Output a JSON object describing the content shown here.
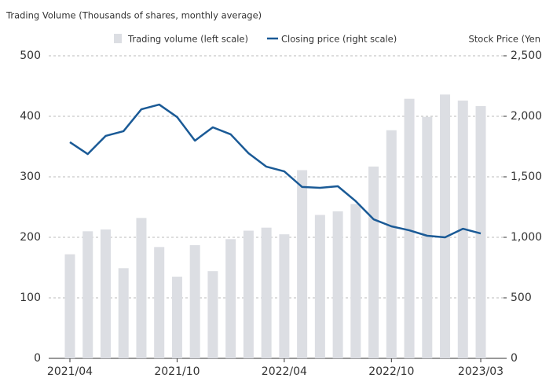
{
  "chart_data": {
    "type": "bar-line",
    "y_axis_title": "Trading Volume (Thousands of shares, monthly average)",
    "y2_axis_title": "Stock Price (Yen",
    "categories": [
      "2021/04",
      null,
      null,
      null,
      null,
      null,
      "2021/10",
      null,
      null,
      null,
      null,
      null,
      "2022/04",
      null,
      null,
      null,
      null,
      null,
      "2022/10",
      null,
      null,
      null,
      null,
      "2023/03"
    ],
    "series": [
      {
        "name": "Trading volume (left scale)",
        "color": "#dcdee3",
        "kind": "bar",
        "values": [
          172,
          210,
          213,
          149,
          232,
          184,
          135,
          187,
          144,
          197,
          211,
          216,
          205,
          311,
          237,
          243,
          255,
          317,
          377,
          429,
          399,
          436,
          426,
          417
        ]
      },
      {
        "name": "Closing price (right scale)",
        "color": "#1a5a96",
        "kind": "line",
        "axis": "y2",
        "values": [
          1786,
          1688,
          1838,
          1877,
          2058,
          2097,
          1994,
          1799,
          1909,
          1851,
          1695,
          1584,
          1545,
          1416,
          1409,
          1422,
          1299,
          1149,
          1091,
          1058,
          1013,
          1000,
          1071,
          1032
        ]
      }
    ],
    "ylim": [
      0,
      500
    ],
    "yticks": [
      0,
      100,
      200,
      300,
      400,
      500
    ],
    "y2lim": [
      0,
      2500
    ],
    "y2ticks": [
      0,
      500,
      {
        "value": 1000,
        "label": "1,000"
      },
      {
        "value": 1500,
        "label": "1,500"
      },
      {
        "value": 2000,
        "label": "2,000"
      },
      {
        "value": 2500,
        "label": "2,500"
      }
    ],
    "grid": true
  }
}
